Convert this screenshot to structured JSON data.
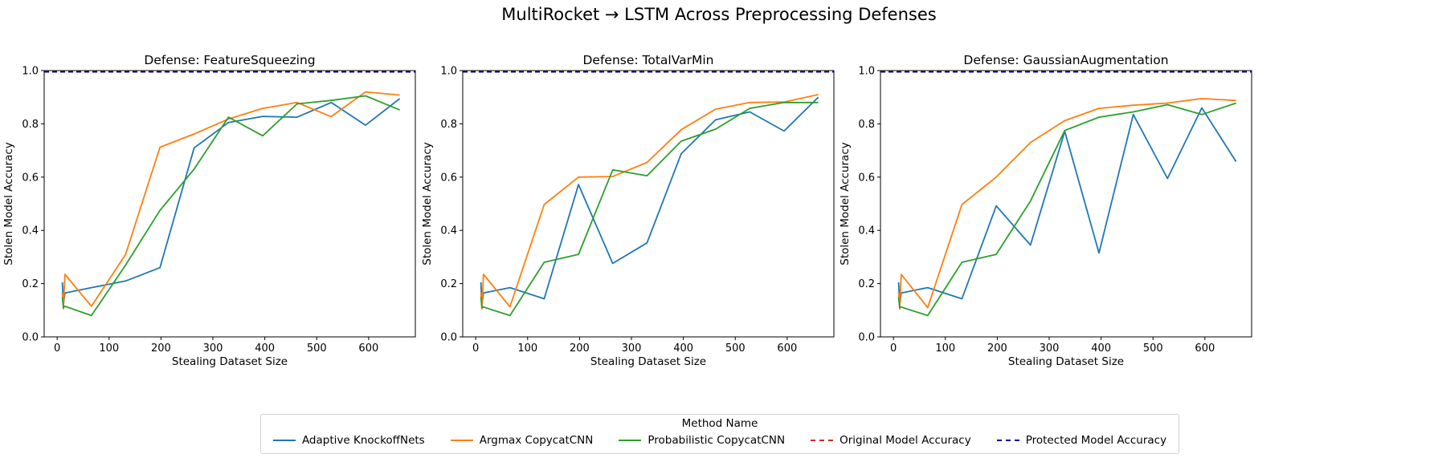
{
  "figure": {
    "title": "MultiRocket → LSTM Across Preprocessing Defenses"
  },
  "legend": {
    "title": "Method Name",
    "items": [
      {
        "label": "Adaptive KnockoffNets",
        "color": "#1f77b4",
        "style": "solid"
      },
      {
        "label": "Argmax CopycatCNN",
        "color": "#ff7f0e",
        "style": "solid"
      },
      {
        "label": "Probabilistic CopycatCNN",
        "color": "#2ca02c",
        "style": "solid"
      },
      {
        "label": "Original Model Accuracy",
        "color": "#d62728",
        "style": "dashed"
      },
      {
        "label": "Protected Model Accuracy",
        "color": "#00008b",
        "style": "dashed"
      }
    ]
  },
  "chart_data": [
    {
      "type": "line",
      "title": "Defense: FeatureSqueezing",
      "xlabel": "Stealing Dataset Size",
      "ylabel": "Stolen Model Accuracy",
      "xlim": [
        -25,
        690
      ],
      "ylim": [
        0,
        1.0
      ],
      "xticks": [
        0,
        100,
        200,
        300,
        400,
        500,
        600
      ],
      "yticks": [
        0.0,
        0.2,
        0.4,
        0.6,
        0.8,
        1.0
      ],
      "reference_lines": [
        {
          "name": "Original Model Accuracy",
          "y": 0.995,
          "color": "#d62728"
        },
        {
          "name": "Protected Model Accuracy",
          "y": 0.995,
          "color": "#00008b"
        }
      ],
      "series": [
        {
          "name": "Adaptive KnockoffNets",
          "color": "#1f77b4",
          "x": [
            10,
            12,
            15,
            66,
            132,
            198,
            264,
            330,
            396,
            462,
            528,
            594,
            660
          ],
          "y": [
            0.205,
            0.12,
            0.165,
            0.185,
            0.21,
            0.26,
            0.71,
            0.805,
            0.828,
            0.825,
            0.88,
            0.795,
            0.895
          ]
        },
        {
          "name": "Argmax CopycatCNN",
          "color": "#ff7f0e",
          "x": [
            10,
            12,
            15,
            66,
            132,
            198,
            264,
            330,
            396,
            462,
            528,
            594,
            660
          ],
          "y": [
            0.165,
            0.105,
            0.235,
            0.115,
            0.31,
            0.712,
            0.762,
            0.818,
            0.858,
            0.88,
            0.827,
            0.92,
            0.908
          ]
        },
        {
          "name": "Probabilistic CopycatCNN",
          "color": "#2ca02c",
          "x": [
            10,
            12,
            15,
            66,
            132,
            198,
            264,
            330,
            396,
            462,
            528,
            594,
            660
          ],
          "y": [
            0.15,
            0.11,
            0.115,
            0.08,
            0.27,
            0.475,
            0.63,
            0.825,
            0.755,
            0.875,
            0.888,
            0.905,
            0.852
          ]
        }
      ]
    },
    {
      "type": "line",
      "title": "Defense: TotalVarMin",
      "xlabel": "Stealing Dataset Size",
      "ylabel": "Stolen Model Accuracy",
      "xlim": [
        -25,
        690
      ],
      "ylim": [
        0,
        1.0
      ],
      "xticks": [
        0,
        100,
        200,
        300,
        400,
        500,
        600
      ],
      "yticks": [
        0.0,
        0.2,
        0.4,
        0.6,
        0.8,
        1.0
      ],
      "reference_lines": [
        {
          "name": "Original Model Accuracy",
          "y": 0.995,
          "color": "#d62728"
        },
        {
          "name": "Protected Model Accuracy",
          "y": 0.995,
          "color": "#00008b"
        }
      ],
      "series": [
        {
          "name": "Adaptive KnockoffNets",
          "color": "#1f77b4",
          "x": [
            10,
            12,
            15,
            66,
            132,
            198,
            264,
            330,
            396,
            462,
            528,
            594,
            660
          ],
          "y": [
            0.205,
            0.12,
            0.165,
            0.185,
            0.143,
            0.572,
            0.276,
            0.353,
            0.688,
            0.815,
            0.845,
            0.773,
            0.9
          ]
        },
        {
          "name": "Argmax CopycatCNN",
          "color": "#ff7f0e",
          "x": [
            10,
            12,
            15,
            66,
            132,
            198,
            264,
            330,
            396,
            462,
            528,
            594,
            660
          ],
          "y": [
            0.165,
            0.105,
            0.235,
            0.113,
            0.497,
            0.6,
            0.602,
            0.655,
            0.778,
            0.855,
            0.88,
            0.882,
            0.91
          ]
        },
        {
          "name": "Probabilistic CopycatCNN",
          "color": "#2ca02c",
          "x": [
            10,
            12,
            15,
            66,
            132,
            198,
            264,
            330,
            396,
            462,
            528,
            594,
            660
          ],
          "y": [
            0.15,
            0.11,
            0.112,
            0.08,
            0.28,
            0.31,
            0.627,
            0.605,
            0.735,
            0.78,
            0.858,
            0.88,
            0.88
          ]
        }
      ]
    },
    {
      "type": "line",
      "title": "Defense: GaussianAugmentation",
      "xlabel": "Stealing Dataset Size",
      "ylabel": "Stolen Model Accuracy",
      "xlim": [
        -25,
        690
      ],
      "ylim": [
        0,
        1.0
      ],
      "xticks": [
        0,
        100,
        200,
        300,
        400,
        500,
        600
      ],
      "yticks": [
        0.0,
        0.2,
        0.4,
        0.6,
        0.8,
        1.0
      ],
      "reference_lines": [
        {
          "name": "Original Model Accuracy",
          "y": 0.995,
          "color": "#d62728"
        },
        {
          "name": "Protected Model Accuracy",
          "y": 0.995,
          "color": "#00008b"
        }
      ],
      "series": [
        {
          "name": "Adaptive KnockoffNets",
          "color": "#1f77b4",
          "x": [
            10,
            12,
            15,
            66,
            132,
            198,
            264,
            330,
            396,
            462,
            528,
            594,
            660
          ],
          "y": [
            0.205,
            0.12,
            0.165,
            0.185,
            0.143,
            0.492,
            0.345,
            0.772,
            0.315,
            0.835,
            0.595,
            0.86,
            0.658
          ]
        },
        {
          "name": "Argmax CopycatCNN",
          "color": "#ff7f0e",
          "x": [
            10,
            12,
            15,
            66,
            132,
            198,
            264,
            330,
            396,
            462,
            528,
            594,
            660
          ],
          "y": [
            0.165,
            0.105,
            0.235,
            0.11,
            0.497,
            0.6,
            0.73,
            0.812,
            0.858,
            0.87,
            0.878,
            0.895,
            0.888
          ]
        },
        {
          "name": "Probabilistic CopycatCNN",
          "color": "#2ca02c",
          "x": [
            10,
            12,
            15,
            66,
            132,
            198,
            264,
            330,
            396,
            462,
            528,
            594,
            660
          ],
          "y": [
            0.15,
            0.11,
            0.112,
            0.08,
            0.28,
            0.31,
            0.51,
            0.775,
            0.825,
            0.845,
            0.872,
            0.835,
            0.878
          ]
        }
      ]
    }
  ]
}
